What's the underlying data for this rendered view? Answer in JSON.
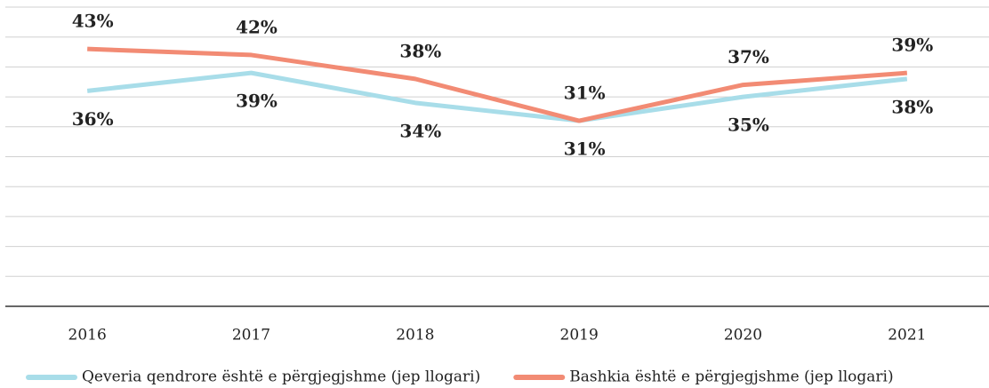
{
  "chart_data": {
    "type": "line",
    "categories": [
      "2016",
      "2017",
      "2018",
      "2019",
      "2020",
      "2021"
    ],
    "series": [
      {
        "name": "Qeveria qendrore është e përgjegjshme (jep llogari)",
        "color": "#a8dde9",
        "values": [
          36,
          39,
          34,
          31,
          35,
          38
        ],
        "value_labels": [
          "36%",
          "39%",
          "34%",
          "31%",
          "35%",
          "38%"
        ]
      },
      {
        "name": "Bashkia është e përgjegjshme (jep llogari)",
        "color": "#f28b74",
        "values": [
          43,
          42,
          38,
          31,
          37,
          39
        ],
        "value_labels": [
          "43%",
          "42%",
          "38%",
          "31%",
          "37%",
          "39%"
        ]
      }
    ],
    "ylim": [
      0,
      50
    ],
    "yticks": [
      0,
      5,
      10,
      15,
      20,
      25,
      30,
      35,
      40,
      45,
      50
    ],
    "grid": true
  }
}
